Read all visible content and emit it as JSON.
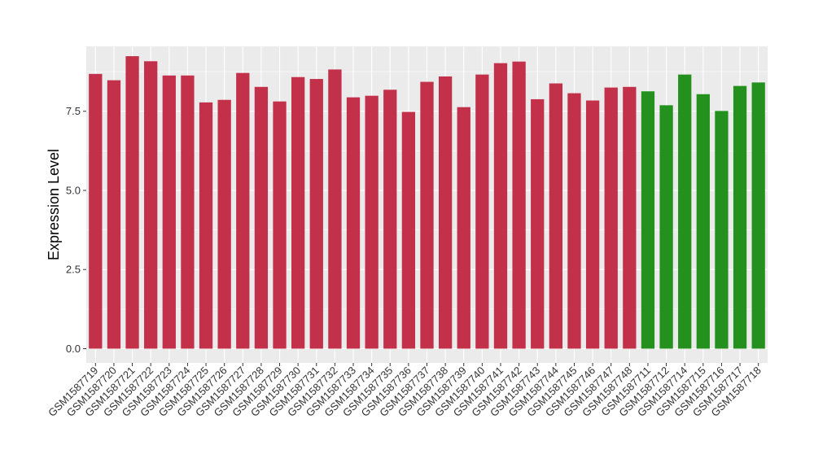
{
  "chart_data": {
    "type": "bar",
    "ylabel": "Expression Level",
    "xlabel": "",
    "ylim": [
      -0.45,
      9.55
    ],
    "yticks": [
      0.0,
      2.5,
      5.0,
      7.5
    ],
    "ytick_labels": [
      "0.0",
      "2.5",
      "5.0",
      "7.5"
    ],
    "grid": true,
    "legend": "none",
    "colors": {
      "group1": "#c23049",
      "group2": "#24911f",
      "panel": "#ebebeb",
      "grid": "#ffffff"
    },
    "categories": [
      "GSM1587719",
      "GSM1587720",
      "GSM1587721",
      "GSM1587722",
      "GSM1587723",
      "GSM1587724",
      "GSM1587725",
      "GSM1587726",
      "GSM1587727",
      "GSM1587728",
      "GSM1587729",
      "GSM1587730",
      "GSM1587731",
      "GSM1587732",
      "GSM1587733",
      "GSM1587734",
      "GSM1587735",
      "GSM1587736",
      "GSM1587737",
      "GSM1587738",
      "GSM1587739",
      "GSM1587740",
      "GSM1587741",
      "GSM1587742",
      "GSM1587743",
      "GSM1587744",
      "GSM1587745",
      "GSM1587746",
      "GSM1587747",
      "GSM1587748",
      "GSM1587711",
      "GSM1587712",
      "GSM1587714",
      "GSM1587715",
      "GSM1587716",
      "GSM1587717",
      "GSM1587718"
    ],
    "values": [
      8.68,
      8.48,
      9.24,
      9.08,
      8.63,
      8.63,
      7.78,
      7.86,
      8.71,
      8.27,
      7.81,
      8.58,
      8.52,
      8.82,
      7.94,
      7.99,
      8.18,
      7.48,
      8.43,
      8.6,
      7.63,
      8.66,
      9.02,
      9.07,
      7.88,
      8.38,
      8.07,
      7.84,
      8.25,
      8.27,
      8.13,
      7.69,
      8.66,
      8.04,
      7.51,
      8.3,
      8.41
    ],
    "groups": [
      "group1",
      "group1",
      "group1",
      "group1",
      "group1",
      "group1",
      "group1",
      "group1",
      "group1",
      "group1",
      "group1",
      "group1",
      "group1",
      "group1",
      "group1",
      "group1",
      "group1",
      "group1",
      "group1",
      "group1",
      "group1",
      "group1",
      "group1",
      "group1",
      "group1",
      "group1",
      "group1",
      "group1",
      "group1",
      "group1",
      "group2",
      "group2",
      "group2",
      "group2",
      "group2",
      "group2",
      "group2"
    ]
  }
}
